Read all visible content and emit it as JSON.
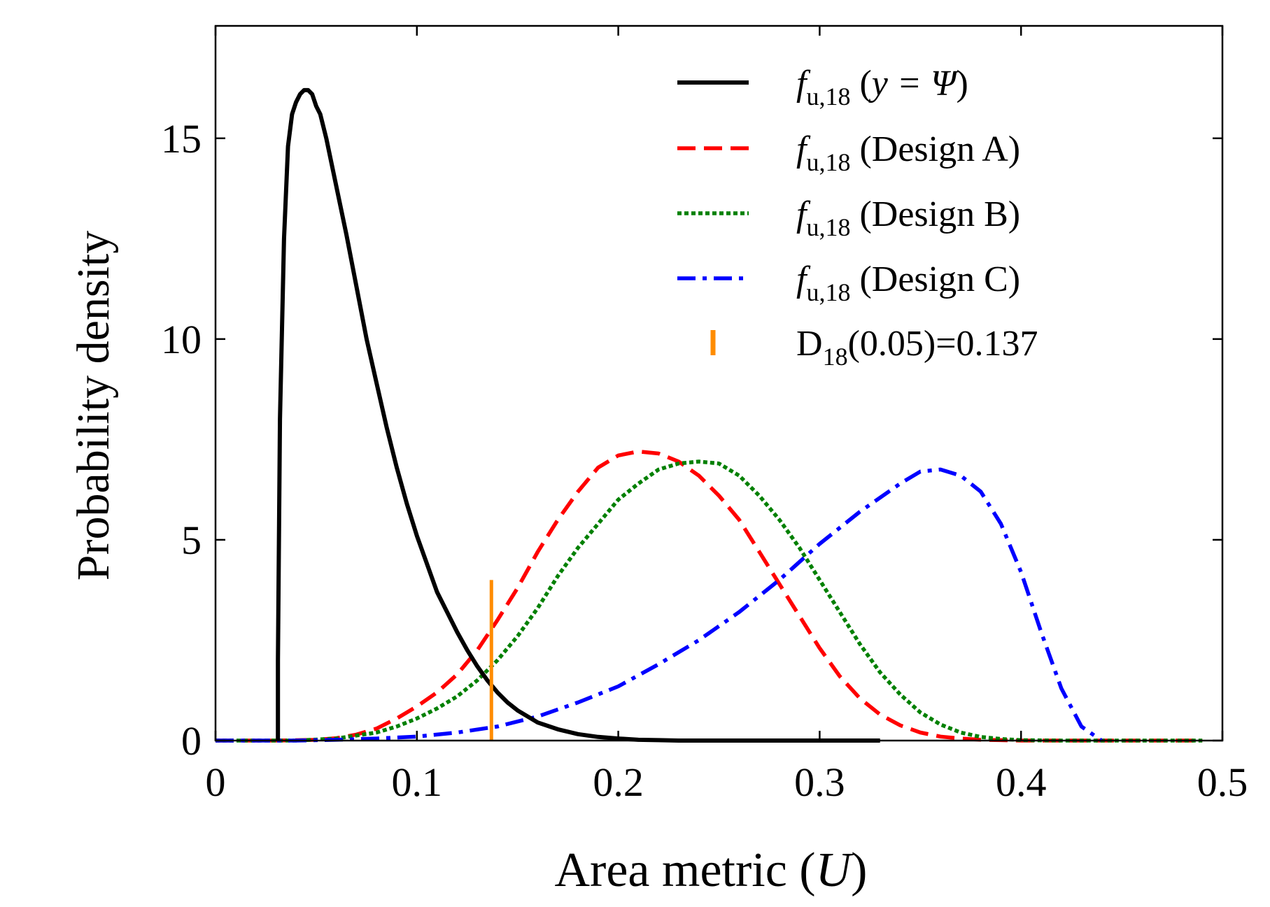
{
  "chart_data": {
    "type": "line",
    "title": "",
    "xlabel": "Area metric",
    "xlabel_symbol": "U",
    "ylabel": "Probability density",
    "xlim": [
      0,
      0.5
    ],
    "ylim": [
      0,
      17.8
    ],
    "xticks": [
      0,
      0.1,
      0.2,
      0.3,
      0.4,
      0.5
    ],
    "xtick_labels": [
      "0",
      "0.1",
      "0.2",
      "0.3",
      "0.4",
      "0.5"
    ],
    "yticks": [
      0,
      5,
      10,
      15
    ],
    "ytick_labels": [
      "0",
      "5",
      "10",
      "15"
    ],
    "grid": false,
    "legend_position": "top-right",
    "series": [
      {
        "name": "f_u,18 (y = Ψ)",
        "legend": {
          "f": "f",
          "sub": "u,18",
          "text": " (",
          "var": "y = Ψ",
          "close": ")"
        },
        "color": "#000000",
        "style": "solid",
        "x": [
          0.031,
          0.031,
          0.032,
          0.034,
          0.036,
          0.038,
          0.04,
          0.042,
          0.044,
          0.046,
          0.048,
          0.05,
          0.052,
          0.055,
          0.06,
          0.065,
          0.07,
          0.075,
          0.08,
          0.085,
          0.09,
          0.095,
          0.1,
          0.105,
          0.11,
          0.115,
          0.12,
          0.125,
          0.13,
          0.135,
          0.14,
          0.145,
          0.15,
          0.16,
          0.17,
          0.18,
          0.19,
          0.2,
          0.21,
          0.22,
          0.23,
          0.26,
          0.3,
          0.33
        ],
        "y": [
          0.0,
          2.0,
          8.0,
          12.5,
          14.8,
          15.6,
          15.9,
          16.1,
          16.2,
          16.2,
          16.1,
          15.8,
          15.6,
          15.0,
          13.8,
          12.6,
          11.3,
          10.0,
          8.9,
          7.8,
          6.8,
          5.9,
          5.1,
          4.4,
          3.7,
          3.2,
          2.7,
          2.25,
          1.85,
          1.5,
          1.2,
          0.95,
          0.75,
          0.45,
          0.28,
          0.16,
          0.09,
          0.05,
          0.02,
          0.01,
          0.0,
          0.0,
          0.0,
          0.0
        ]
      },
      {
        "name": "f_u,18 (Design A)",
        "legend": {
          "f": "f",
          "sub": "u,18",
          "text": " (Design A)"
        },
        "color": "#ff0000",
        "style": "dashed",
        "x": [
          0.0,
          0.03,
          0.05,
          0.06,
          0.07,
          0.08,
          0.09,
          0.1,
          0.11,
          0.12,
          0.13,
          0.14,
          0.15,
          0.16,
          0.17,
          0.18,
          0.19,
          0.2,
          0.21,
          0.22,
          0.23,
          0.24,
          0.25,
          0.26,
          0.27,
          0.28,
          0.29,
          0.3,
          0.31,
          0.32,
          0.33,
          0.34,
          0.35,
          0.36,
          0.37,
          0.38,
          0.39,
          0.4,
          0.42,
          0.45,
          0.49
        ],
        "y": [
          0.0,
          0.0,
          0.02,
          0.06,
          0.15,
          0.3,
          0.55,
          0.85,
          1.2,
          1.65,
          2.25,
          3.0,
          3.8,
          4.7,
          5.5,
          6.2,
          6.8,
          7.1,
          7.2,
          7.15,
          6.95,
          6.6,
          6.1,
          5.5,
          4.7,
          3.9,
          3.1,
          2.3,
          1.6,
          1.05,
          0.65,
          0.38,
          0.2,
          0.1,
          0.05,
          0.02,
          0.01,
          0.0,
          0.0,
          0.0,
          0.0
        ]
      },
      {
        "name": "f_u,18 (Design B)",
        "legend": {
          "f": "f",
          "sub": "u,18",
          "text": " (Design B)"
        },
        "color": "#008000",
        "style": "dotted",
        "x": [
          0.0,
          0.04,
          0.06,
          0.08,
          0.09,
          0.1,
          0.11,
          0.12,
          0.13,
          0.14,
          0.15,
          0.16,
          0.17,
          0.18,
          0.19,
          0.2,
          0.21,
          0.22,
          0.23,
          0.24,
          0.25,
          0.26,
          0.27,
          0.28,
          0.29,
          0.3,
          0.31,
          0.32,
          0.33,
          0.34,
          0.35,
          0.36,
          0.37,
          0.38,
          0.39,
          0.4,
          0.42,
          0.45,
          0.49
        ],
        "y": [
          0.0,
          0.0,
          0.05,
          0.2,
          0.35,
          0.55,
          0.8,
          1.1,
          1.5,
          2.0,
          2.6,
          3.3,
          4.1,
          4.8,
          5.4,
          6.0,
          6.4,
          6.75,
          6.9,
          6.95,
          6.9,
          6.6,
          6.1,
          5.5,
          4.8,
          4.0,
          3.2,
          2.4,
          1.7,
          1.15,
          0.7,
          0.4,
          0.2,
          0.09,
          0.04,
          0.01,
          0.0,
          0.0,
          0.0
        ]
      },
      {
        "name": "f_u,18 (Design C)",
        "legend": {
          "f": "f",
          "sub": "u,18",
          "text": " (Design C)"
        },
        "color": "#0000ff",
        "style": "dashdot",
        "x": [
          0.0,
          0.04,
          0.06,
          0.08,
          0.1,
          0.12,
          0.14,
          0.16,
          0.18,
          0.2,
          0.22,
          0.24,
          0.26,
          0.28,
          0.3,
          0.32,
          0.34,
          0.35,
          0.36,
          0.37,
          0.38,
          0.39,
          0.4,
          0.41,
          0.42,
          0.43,
          0.44
        ],
        "y": [
          0.0,
          0.0,
          0.02,
          0.05,
          0.1,
          0.2,
          0.35,
          0.6,
          0.95,
          1.35,
          1.9,
          2.5,
          3.2,
          4.0,
          4.9,
          5.7,
          6.4,
          6.7,
          6.75,
          6.6,
          6.2,
          5.4,
          4.2,
          2.7,
          1.3,
          0.35,
          0.0
        ]
      }
    ],
    "marker": {
      "name": "D_18(0.05)=0.137",
      "legend": {
        "text_a": "D",
        "sub": "18",
        "text_b": "(0.05)=0.137"
      },
      "color": "#ff8c00",
      "x": 0.137,
      "y_range": [
        0,
        4.0
      ]
    }
  }
}
